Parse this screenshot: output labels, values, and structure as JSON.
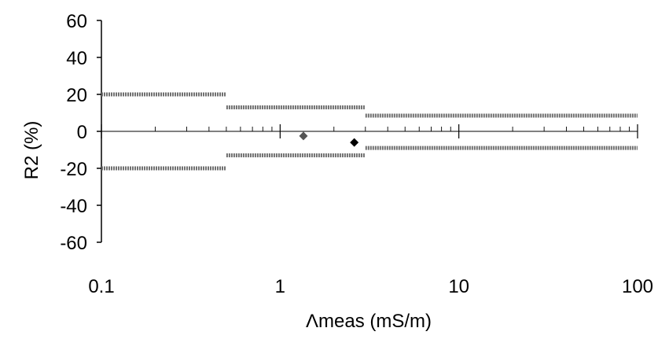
{
  "chart_data": {
    "type": "scatter",
    "xlabel": "Λmeas (mS/m)",
    "ylabel": "R2 (%)",
    "x_scale": "log",
    "xlim": [
      0.1,
      100
    ],
    "ylim": [
      -60,
      60
    ],
    "x_ticks": [
      0.1,
      1,
      10,
      100
    ],
    "x_tick_labels": [
      "0.1",
      "1",
      "10",
      "100"
    ],
    "y_ticks": [
      60,
      40,
      20,
      0,
      -20,
      -40,
      -60
    ],
    "y_tick_labels": [
      "60",
      "40",
      "20",
      "0",
      "-20",
      "-40",
      "-60"
    ],
    "grid": false,
    "legend": "none",
    "series": [
      {
        "type": "step-band",
        "color": "#707070",
        "segments": [
          {
            "x": [
              0.1,
              0.5
            ],
            "y": 20
          },
          {
            "x": [
              0.5,
              3
            ],
            "y": 13
          },
          {
            "x": [
              3,
              100
            ],
            "y": 8.5
          }
        ]
      },
      {
        "type": "step-band",
        "color": "#707070",
        "segments": [
          {
            "x": [
              0.1,
              0.5
            ],
            "y": -20
          },
          {
            "x": [
              0.5,
              3
            ],
            "y": -13
          },
          {
            "x": [
              3,
              100
            ],
            "y": -9
          }
        ]
      },
      {
        "type": "scatter",
        "color": "#555555",
        "marker": "diamond",
        "points": [
          {
            "x": 1.35,
            "y": -2.5
          }
        ]
      },
      {
        "type": "scatter",
        "color": "#000000",
        "marker": "diamond",
        "points": [
          {
            "x": 2.6,
            "y": -6
          }
        ]
      }
    ]
  }
}
